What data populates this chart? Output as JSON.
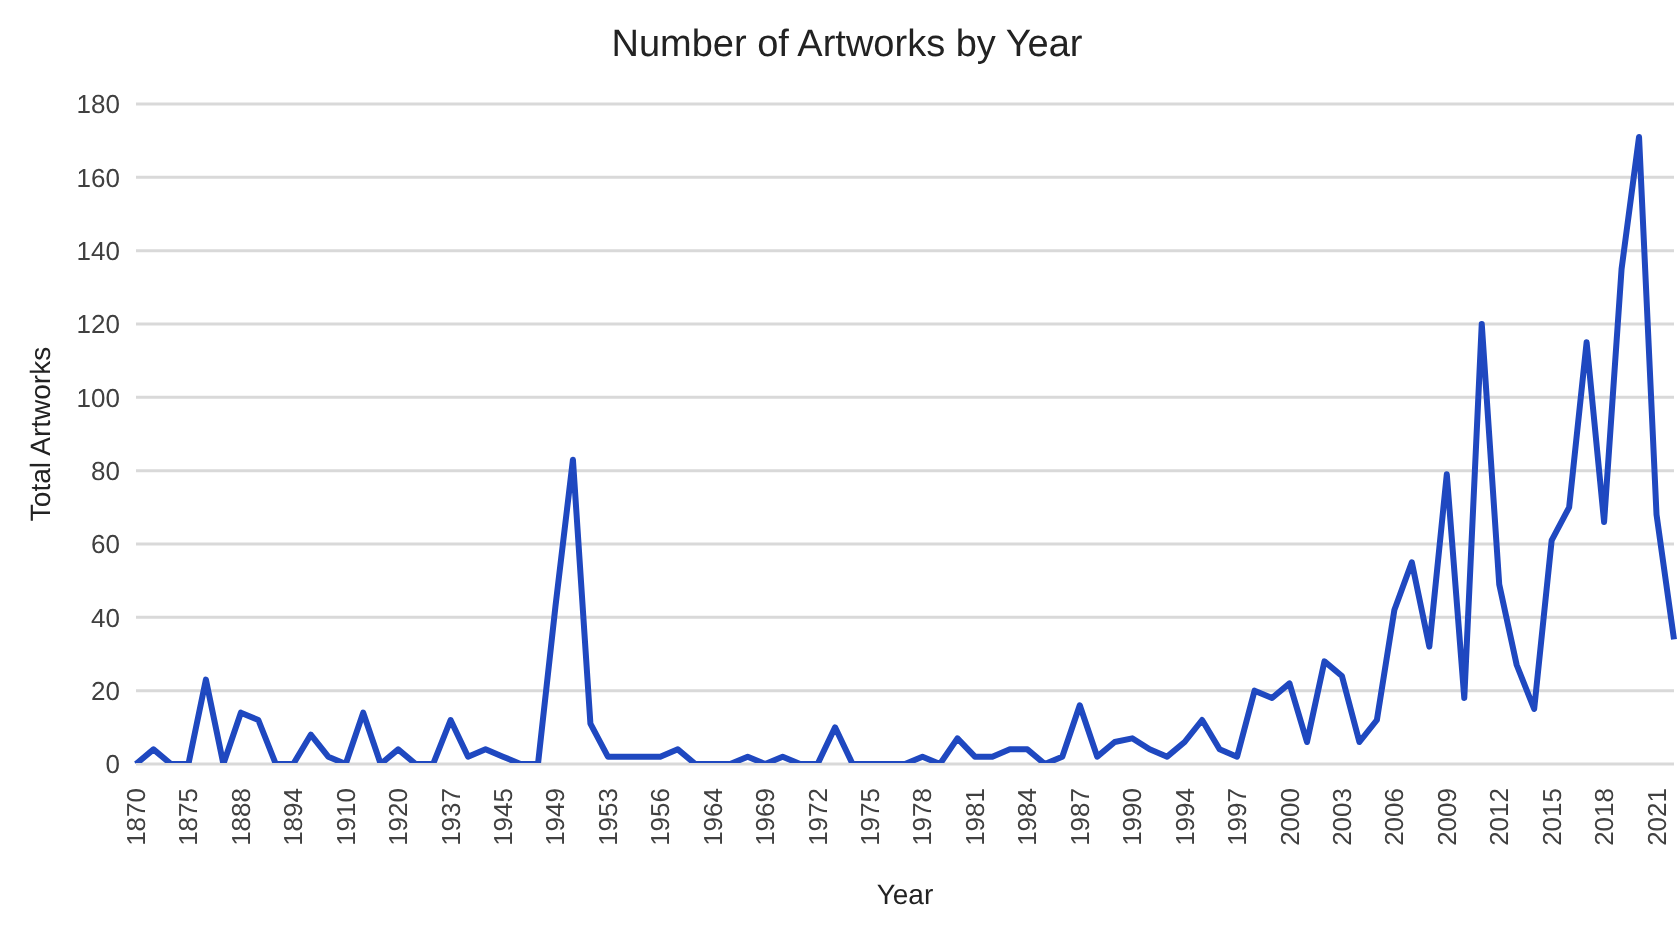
{
  "chart_data": {
    "type": "line",
    "title": "Number of Artworks by Year",
    "xlabel": "Year",
    "ylabel": "Total Artworks",
    "categories": [
      "1870",
      null,
      null,
      "1875",
      null,
      null,
      "1888",
      null,
      null,
      "1894",
      null,
      null,
      "1910",
      null,
      null,
      "1920",
      null,
      null,
      "1937",
      null,
      null,
      "1945",
      null,
      null,
      "1949",
      null,
      null,
      "1953",
      null,
      null,
      "1956",
      null,
      null,
      "1964",
      null,
      null,
      "1969",
      null,
      null,
      "1972",
      null,
      null,
      "1975",
      null,
      null,
      "1978",
      null,
      null,
      "1981",
      null,
      null,
      "1984",
      null,
      null,
      "1987",
      null,
      null,
      "1990",
      null,
      null,
      "1994",
      null,
      null,
      "1997",
      null,
      null,
      "2000",
      null,
      null,
      "2003",
      null,
      null,
      "2006",
      null,
      null,
      "2009",
      null,
      null,
      "2012",
      null,
      null,
      "2015",
      null,
      null,
      "2018",
      null,
      null,
      "2021",
      null
    ],
    "series": [
      {
        "color": "#1f48c0",
        "values": [
          0,
          4,
          0,
          0,
          23,
          0,
          14,
          12,
          0,
          0,
          8,
          2,
          0,
          14,
          0,
          4,
          0,
          0,
          12,
          2,
          4,
          2,
          0,
          0,
          43,
          83,
          11,
          2,
          2,
          2,
          2,
          4,
          0,
          0,
          0,
          2,
          0,
          2,
          0,
          0,
          10,
          0,
          0,
          0,
          0,
          2,
          0,
          7,
          2,
          2,
          4,
          4,
          0,
          2,
          16,
          2,
          6,
          7,
          4,
          2,
          6,
          12,
          4,
          2,
          20,
          18,
          22,
          6,
          28,
          24,
          6,
          12,
          42,
          55,
          32,
          79,
          18,
          120,
          49,
          27,
          15,
          61,
          70,
          115,
          66,
          135,
          171,
          68,
          34
        ]
      }
    ],
    "ylim": [
      0,
      180
    ],
    "yticks": [
      0,
      20,
      40,
      60,
      80,
      100,
      120,
      140,
      160,
      180
    ],
    "grid": "y",
    "legend": false,
    "marker": "none",
    "line_style": "solid"
  }
}
